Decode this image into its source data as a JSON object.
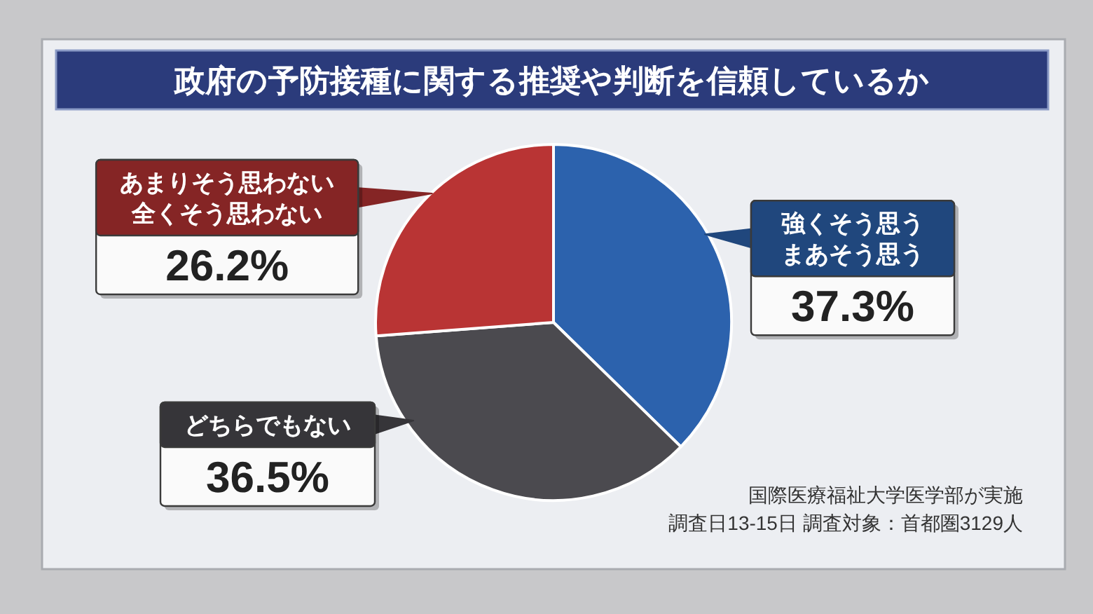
{
  "chart_data": {
    "type": "pie",
    "title": "政府の予防接種に関する推奨や判断を信頼しているか",
    "categories": [
      "強くそう思うまあそう思う",
      "どちらでもない",
      "あまりそう思わない全くそう思わない"
    ],
    "values": [
      37.3,
      36.5,
      26.2
    ],
    "colors": [
      "#2c62ad",
      "#4b4a4f",
      "#b93434"
    ],
    "value_labels": [
      "37.3%",
      "36.5%",
      "26.2%"
    ],
    "annotations": [
      "国際医療福祉大学医学部が実施",
      "調査日13-15日 調査対象：首都圏3129人"
    ]
  }
}
